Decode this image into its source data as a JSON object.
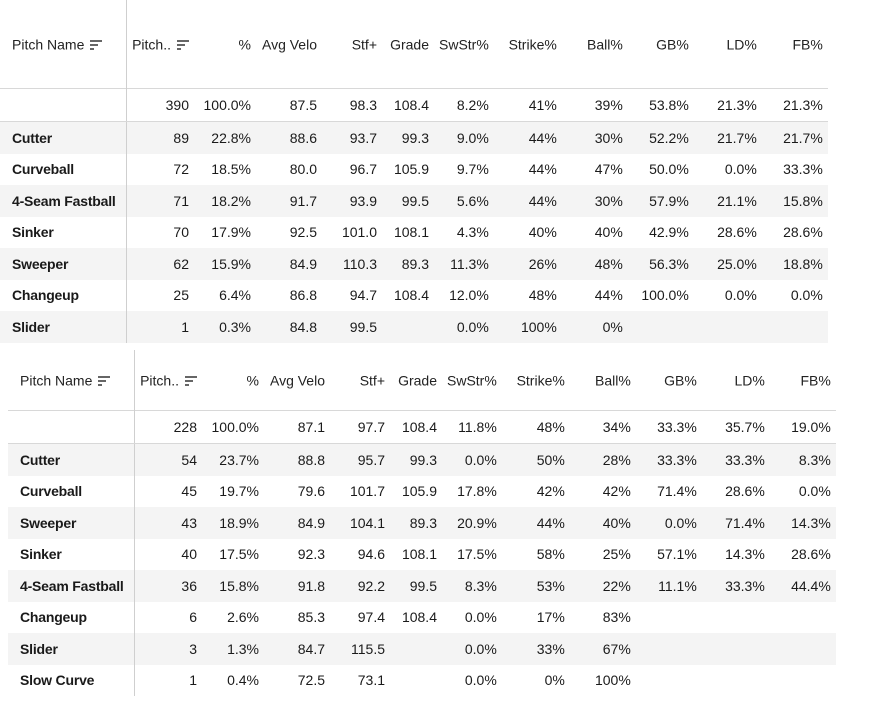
{
  "columns": [
    "Pitch Name",
    "Pitch..",
    "%",
    "Avg Velo",
    "Stf+",
    "Grade",
    "SwStr%",
    "Strike%",
    "Ball%",
    "GB%",
    "LD%",
    "FB%"
  ],
  "tables": [
    {
      "summary": [
        "",
        "390",
        "100.0%",
        "87.5",
        "98.3",
        "108.4",
        "8.2%",
        "41%",
        "39%",
        "53.8%",
        "21.3%",
        "21.3%"
      ],
      "rows": [
        [
          "Cutter",
          "89",
          "22.8%",
          "88.6",
          "93.7",
          "99.3",
          "9.0%",
          "44%",
          "30%",
          "52.2%",
          "21.7%",
          "21.7%"
        ],
        [
          "Curveball",
          "72",
          "18.5%",
          "80.0",
          "96.7",
          "105.9",
          "9.7%",
          "44%",
          "47%",
          "50.0%",
          "0.0%",
          "33.3%"
        ],
        [
          "4-Seam Fastball",
          "71",
          "18.2%",
          "91.7",
          "93.9",
          "99.5",
          "5.6%",
          "44%",
          "30%",
          "57.9%",
          "21.1%",
          "15.8%"
        ],
        [
          "Sinker",
          "70",
          "17.9%",
          "92.5",
          "101.0",
          "108.1",
          "4.3%",
          "40%",
          "40%",
          "42.9%",
          "28.6%",
          "28.6%"
        ],
        [
          "Sweeper",
          "62",
          "15.9%",
          "84.9",
          "110.3",
          "89.3",
          "11.3%",
          "26%",
          "48%",
          "56.3%",
          "25.0%",
          "18.8%"
        ],
        [
          "Changeup",
          "25",
          "6.4%",
          "86.8",
          "94.7",
          "108.4",
          "12.0%",
          "48%",
          "44%",
          "100.0%",
          "0.0%",
          "0.0%"
        ],
        [
          "Slider",
          "1",
          "0.3%",
          "84.8",
          "99.5",
          "",
          "0.0%",
          "100%",
          "0%",
          "",
          "",
          ""
        ]
      ]
    },
    {
      "summary": [
        "",
        "228",
        "100.0%",
        "87.1",
        "97.7",
        "108.4",
        "11.8%",
        "48%",
        "34%",
        "33.3%",
        "35.7%",
        "19.0%"
      ],
      "rows": [
        [
          "Cutter",
          "54",
          "23.7%",
          "88.8",
          "95.7",
          "99.3",
          "0.0%",
          "50%",
          "28%",
          "33.3%",
          "33.3%",
          "8.3%"
        ],
        [
          "Curveball",
          "45",
          "19.7%",
          "79.6",
          "101.7",
          "105.9",
          "17.8%",
          "42%",
          "42%",
          "71.4%",
          "28.6%",
          "0.0%"
        ],
        [
          "Sweeper",
          "43",
          "18.9%",
          "84.9",
          "104.1",
          "89.3",
          "20.9%",
          "44%",
          "40%",
          "0.0%",
          "71.4%",
          "14.3%"
        ],
        [
          "Sinker",
          "40",
          "17.5%",
          "92.3",
          "94.6",
          "108.1",
          "17.5%",
          "58%",
          "25%",
          "57.1%",
          "14.3%",
          "28.6%"
        ],
        [
          "4-Seam Fastball",
          "36",
          "15.8%",
          "91.8",
          "92.2",
          "99.5",
          "8.3%",
          "53%",
          "22%",
          "11.1%",
          "33.3%",
          "44.4%"
        ],
        [
          "Changeup",
          "6",
          "2.6%",
          "85.3",
          "97.4",
          "108.4",
          "0.0%",
          "17%",
          "83%",
          "",
          "",
          ""
        ],
        [
          "Slider",
          "3",
          "1.3%",
          "84.7",
          "115.5",
          "",
          "0.0%",
          "33%",
          "67%",
          "",
          "",
          ""
        ],
        [
          "Slow Curve",
          "1",
          "0.4%",
          "72.5",
          "73.1",
          "",
          "0.0%",
          "0%",
          "100%",
          "",
          "",
          ""
        ]
      ]
    }
  ],
  "icons": {
    "sort": "sort-icon"
  },
  "colors": {
    "alt_row": "#f4f4f4",
    "border": "#d8d8d8",
    "text": "#1a1a1a"
  }
}
